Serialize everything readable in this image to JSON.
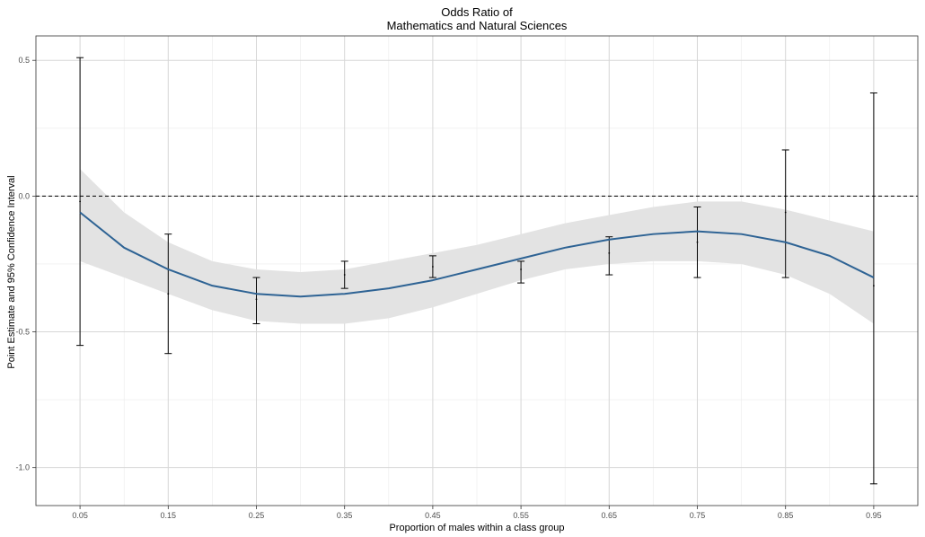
{
  "chart_data": {
    "type": "line",
    "title": [
      "Odds Ratio of",
      "Mathematics and Natural Sciences"
    ],
    "xlabel": "Proportion of males within a class group",
    "ylabel": "Point Estimate and 95% Confidence Interval",
    "xlim": [
      0,
      1
    ],
    "ylim": [
      -1.14,
      0.59
    ],
    "x_ticks": [
      0.05,
      0.15,
      0.25,
      0.35,
      0.45,
      0.55,
      0.65,
      0.75,
      0.85,
      0.95
    ],
    "x_tick_labels": [
      "0.05",
      "0.15",
      "0.25",
      "0.35",
      "0.45",
      "0.55",
      "0.65",
      "0.75",
      "0.85",
      "0.95"
    ],
    "y_ticks": [
      0.5,
      0.0,
      -0.5,
      -1.0
    ],
    "y_tick_labels": [
      "0.5",
      "0.0",
      "-0.5",
      "-1.0"
    ],
    "grid": true,
    "reference_line": {
      "y": 0.0,
      "style": "dashed"
    },
    "points": {
      "x": [
        0.05,
        0.15,
        0.25,
        0.35,
        0.45,
        0.55,
        0.65,
        0.75,
        0.85,
        0.95
      ],
      "estimate": [
        -0.02,
        -0.36,
        -0.38,
        -0.29,
        -0.26,
        -0.27,
        -0.21,
        -0.17,
        -0.06,
        -0.33
      ],
      "ci_low": [
        -0.55,
        -0.58,
        -0.47,
        -0.34,
        -0.3,
        -0.32,
        -0.29,
        -0.3,
        -0.3,
        -1.06
      ],
      "ci_high": [
        0.51,
        -0.14,
        -0.3,
        -0.24,
        -0.22,
        -0.24,
        -0.15,
        -0.04,
        0.17,
        0.38
      ]
    },
    "smooth": {
      "x": [
        0.05,
        0.1,
        0.15,
        0.2,
        0.25,
        0.3,
        0.35,
        0.4,
        0.45,
        0.5,
        0.55,
        0.6,
        0.65,
        0.7,
        0.75,
        0.8,
        0.85,
        0.9,
        0.95
      ],
      "y": [
        -0.06,
        -0.19,
        -0.27,
        -0.33,
        -0.36,
        -0.37,
        -0.36,
        -0.34,
        -0.31,
        -0.27,
        -0.23,
        -0.19,
        -0.16,
        -0.14,
        -0.13,
        -0.14,
        -0.17,
        -0.22,
        -0.3
      ],
      "lower": [
        -0.24,
        -0.3,
        -0.36,
        -0.42,
        -0.46,
        -0.47,
        -0.47,
        -0.45,
        -0.41,
        -0.36,
        -0.31,
        -0.27,
        -0.25,
        -0.24,
        -0.24,
        -0.25,
        -0.29,
        -0.36,
        -0.47
      ],
      "upper": [
        0.1,
        -0.06,
        -0.17,
        -0.24,
        -0.27,
        -0.28,
        -0.27,
        -0.24,
        -0.21,
        -0.18,
        -0.14,
        -0.1,
        -0.07,
        -0.04,
        -0.02,
        -0.02,
        -0.05,
        -0.09,
        -0.13
      ]
    },
    "colors": {
      "line": "#2e6394",
      "band": "#e3e3e3",
      "grid_major": "#d6d6d6",
      "grid_minor": "#ebebeb",
      "border": "#333333",
      "errorbar": "#000000"
    }
  }
}
